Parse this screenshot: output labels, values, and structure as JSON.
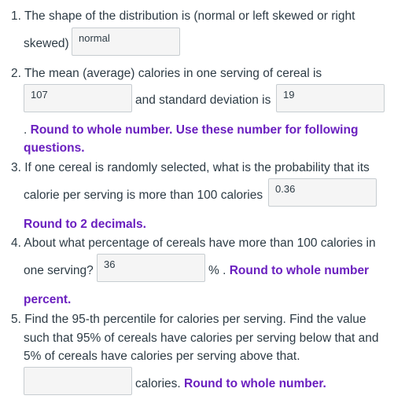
{
  "q1": {
    "number": "1.",
    "text_line1": "The shape of the distribution is (normal or left skewed or right",
    "text_line2": "skewed)",
    "answer_value": "normal"
  },
  "q2": {
    "number": "2.",
    "text_line1": "The mean (average) calories in one serving of cereal is",
    "mean_value": "107",
    "sd_label": "and standard deviation is",
    "sd_value": "19",
    "note_prefix": ".",
    "note_line1": "Round to whole number. Use these number for following",
    "note_line2": "questions."
  },
  "q3": {
    "number": "3.",
    "text_line1": "If one cereal is randomly selected, what is the probability that its",
    "text_line2": "calorie per serving is more than 100 calories",
    "answer_value": "0.36",
    "note": "Round to 2 decimals."
  },
  "q4": {
    "number": "4.",
    "text_line1": "About what percentage of cereals have more than 100 calories in",
    "text_line2": "one serving?",
    "answer_value": "36",
    "suffix": "% .",
    "note_line1": "Round to whole number",
    "note_line2": "percent."
  },
  "q5": {
    "number": "5.",
    "text_line1": "Find the 95-th percentile for calories per serving. Find the value",
    "text_line2": "such that 95% of cereals have calories per serving below that and",
    "text_line3": "5% of cereals have calories per serving above that.",
    "answer_value": "",
    "suffix": "calories.",
    "note": "Round to whole number."
  }
}
